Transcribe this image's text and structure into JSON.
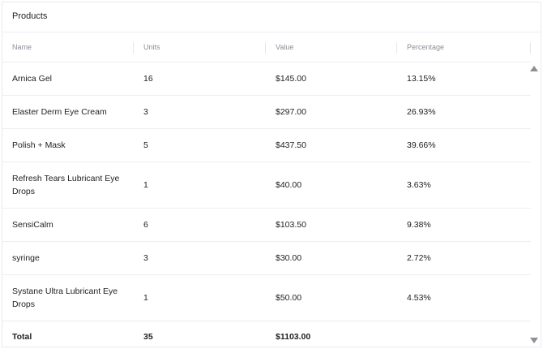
{
  "panel": {
    "title": "Products"
  },
  "table": {
    "columns": [
      "Name",
      "Units",
      "Value",
      "Percentage"
    ],
    "rows": [
      {
        "name": "Arnica Gel",
        "units": "16",
        "value": "$145.00",
        "percentage": "13.15%"
      },
      {
        "name": "Elaster Derm Eye Cream",
        "units": "3",
        "value": "$297.00",
        "percentage": "26.93%"
      },
      {
        "name": "Polish + Mask",
        "units": "5",
        "value": "$437.50",
        "percentage": "39.66%"
      },
      {
        "name": "Refresh Tears Lubricant Eye Drops",
        "units": "1",
        "value": "$40.00",
        "percentage": "3.63%"
      },
      {
        "name": "SensiCalm",
        "units": "6",
        "value": "$103.50",
        "percentage": "9.38%"
      },
      {
        "name": "syringe",
        "units": "3",
        "value": "$30.00",
        "percentage": "2.72%"
      },
      {
        "name": "Systane Ultra Lubricant Eye Drops",
        "units": "1",
        "value": "$50.00",
        "percentage": "4.53%"
      }
    ],
    "total": {
      "label": "Total",
      "units": "35",
      "value": "$1103.00",
      "percentage": ""
    }
  },
  "icons": {
    "scroll_up": "triangle-up-icon",
    "scroll_down": "triangle-down-icon"
  }
}
